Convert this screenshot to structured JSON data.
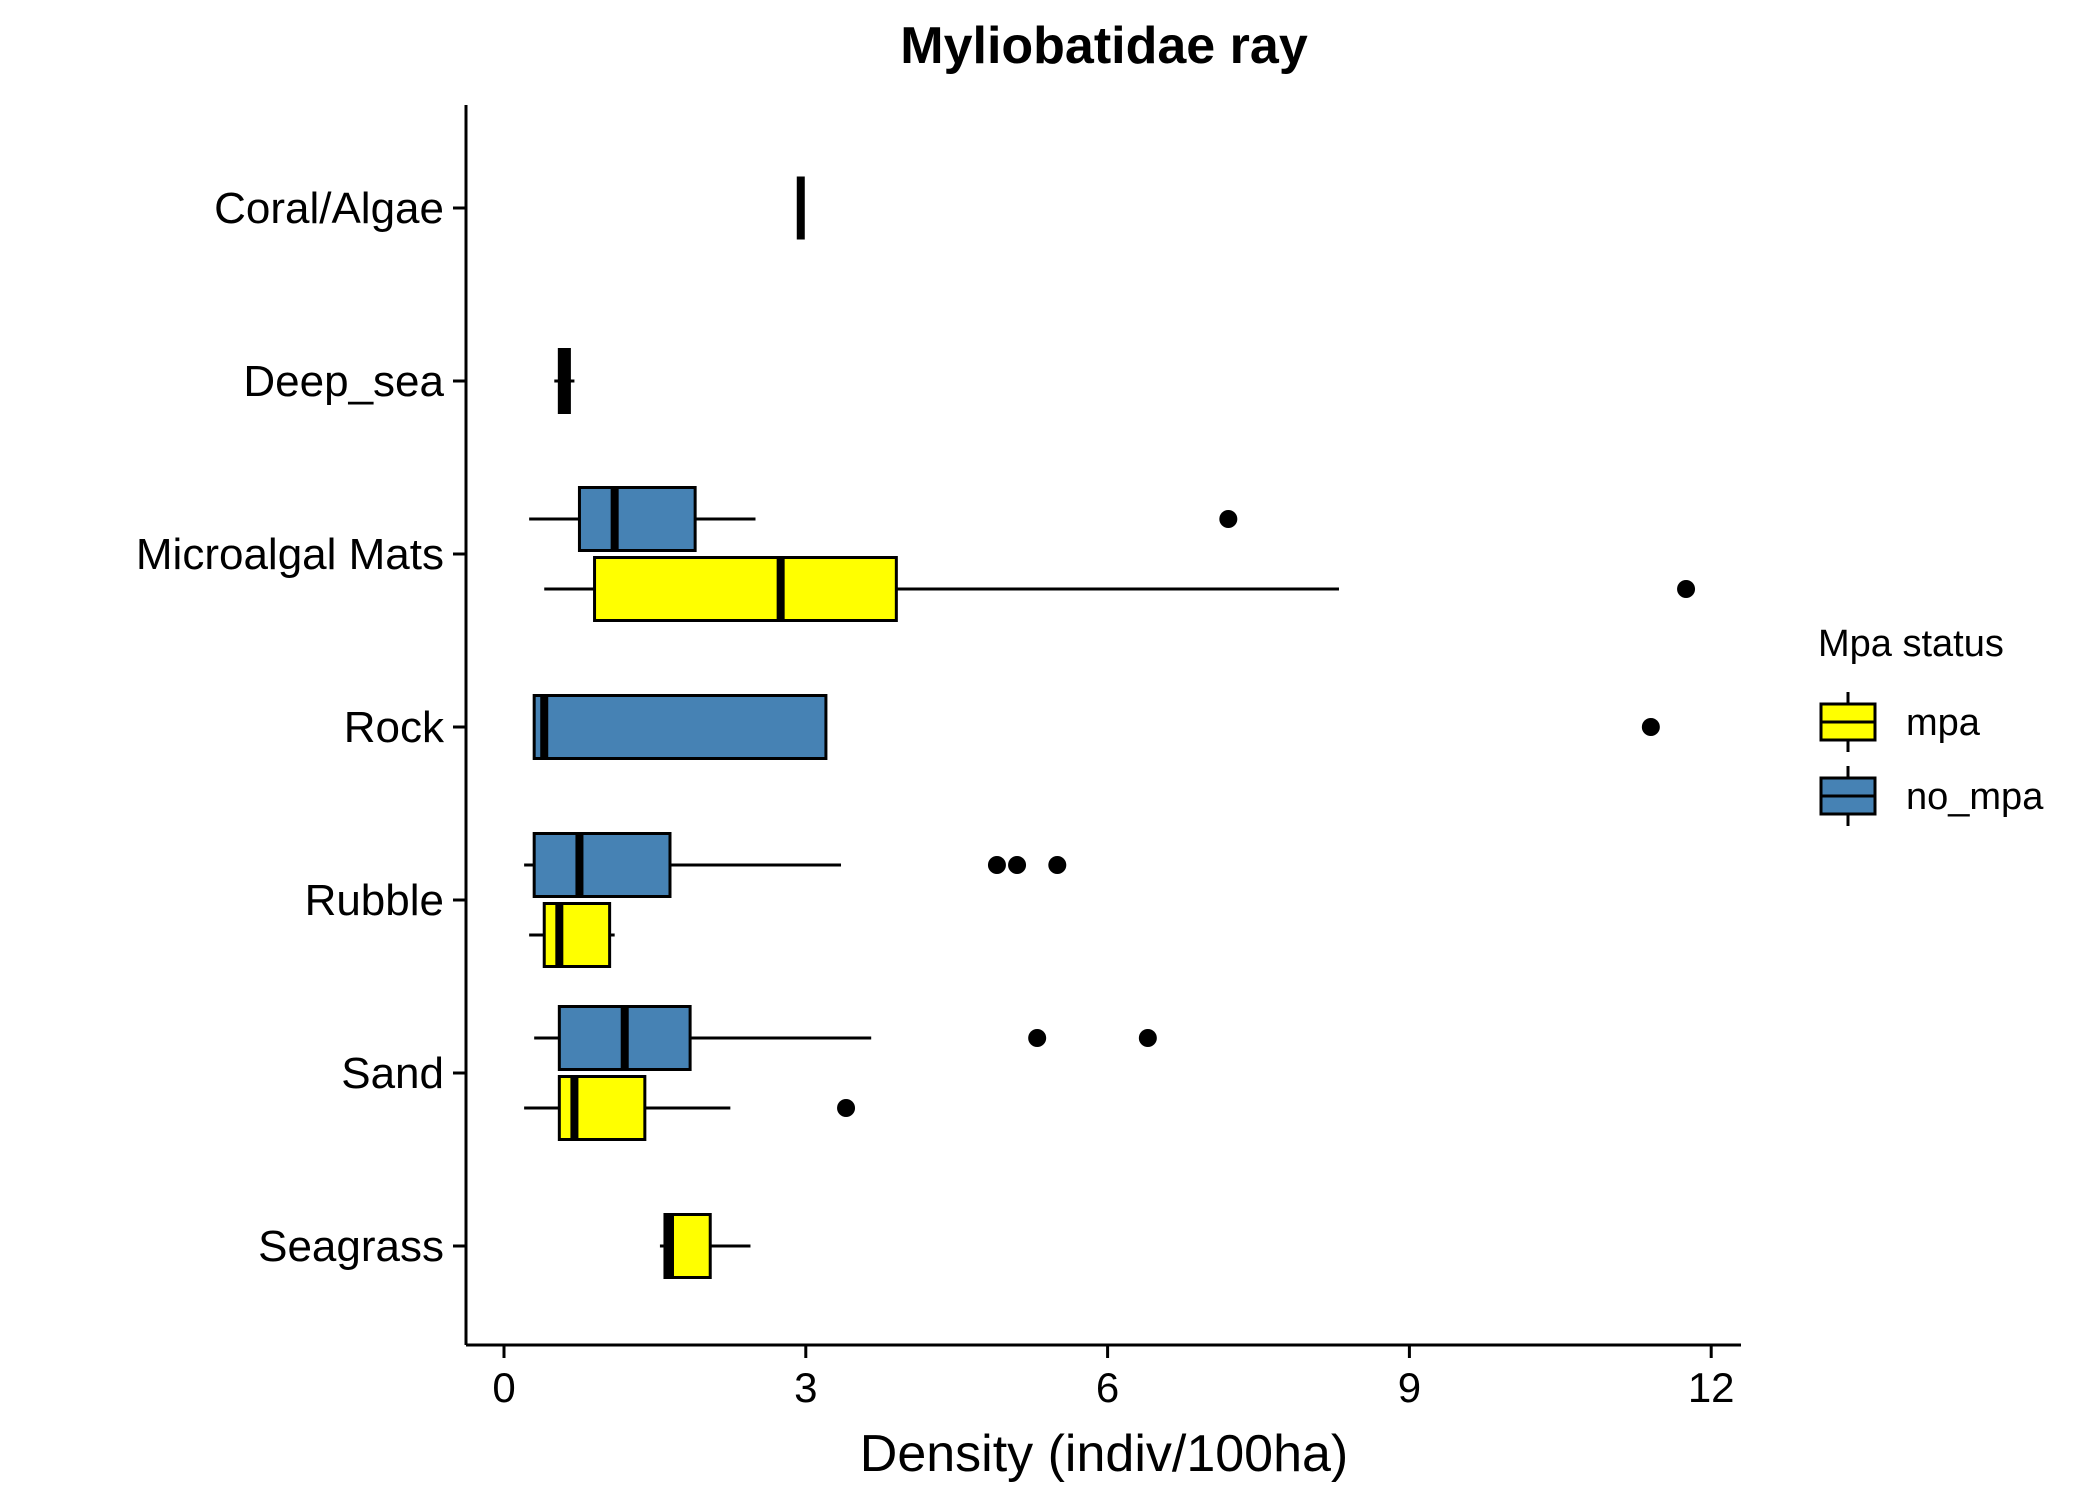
{
  "chart_data": {
    "type": "boxplot",
    "orientation": "horizontal",
    "title": "Myliobatidae ray",
    "xlabel": "Density (indiv/100ha)",
    "ylabel": "",
    "xlim": [
      -0.4,
      12.3
    ],
    "xticks": [
      0,
      3,
      6,
      9,
      12
    ],
    "categories": [
      "Coral/Algae",
      "Deep_sea",
      "Microalgal Mats",
      "Rock",
      "Rubble",
      "Sand",
      "Seagrass"
    ],
    "legend": {
      "title": "Mpa status",
      "position": "right",
      "entries": [
        {
          "name": "mpa",
          "color": "#FFFF00"
        },
        {
          "name": "no_mpa",
          "color": "#4682B4"
        }
      ]
    },
    "grid": false,
    "series": [
      {
        "name": "mpa",
        "color": "#FFFF00",
        "boxes": [
          {
            "category": "Microalgal Mats",
            "whisker_low": 0.4,
            "q1": 0.9,
            "median": 2.75,
            "q3": 3.9,
            "whisker_high": 8.3,
            "outliers": [
              11.75
            ]
          },
          {
            "category": "Rubble",
            "whisker_low": 0.25,
            "q1": 0.4,
            "median": 0.55,
            "q3": 1.05,
            "whisker_high": 1.1,
            "outliers": []
          },
          {
            "category": "Sand",
            "whisker_low": 0.2,
            "q1": 0.55,
            "median": 0.7,
            "q3": 1.4,
            "whisker_high": 2.25,
            "outliers": [
              3.4
            ]
          },
          {
            "category": "Seagrass",
            "whisker_low": 1.55,
            "q1": 1.6,
            "median": 1.65,
            "q3": 2.05,
            "whisker_high": 2.45,
            "outliers": []
          }
        ]
      },
      {
        "name": "no_mpa",
        "color": "#4682B4",
        "boxes": [
          {
            "category": "Coral/Algae",
            "whisker_low": 2.95,
            "q1": 2.95,
            "median": 2.95,
            "q3": 2.95,
            "whisker_high": 2.95,
            "outliers": []
          },
          {
            "category": "Deep_sea",
            "whisker_low": 0.5,
            "q1": 0.55,
            "median": 0.6,
            "q3": 0.65,
            "whisker_high": 0.7,
            "outliers": []
          },
          {
            "category": "Microalgal Mats",
            "whisker_low": 0.25,
            "q1": 0.75,
            "median": 1.1,
            "q3": 1.9,
            "whisker_high": 2.5,
            "outliers": [
              7.2
            ]
          },
          {
            "category": "Rock",
            "whisker_low": 0.3,
            "q1": 0.3,
            "median": 0.4,
            "q3": 3.2,
            "whisker_high": 3.2,
            "outliers": [
              11.4
            ]
          },
          {
            "category": "Rubble",
            "whisker_low": 0.2,
            "q1": 0.3,
            "median": 0.75,
            "q3": 1.65,
            "whisker_high": 3.35,
            "outliers": [
              4.9,
              5.1,
              5.5
            ]
          },
          {
            "category": "Sand",
            "whisker_low": 0.3,
            "q1": 0.55,
            "median": 1.2,
            "q3": 1.85,
            "whisker_high": 3.65,
            "outliers": [
              5.3,
              6.4
            ]
          }
        ]
      }
    ]
  }
}
